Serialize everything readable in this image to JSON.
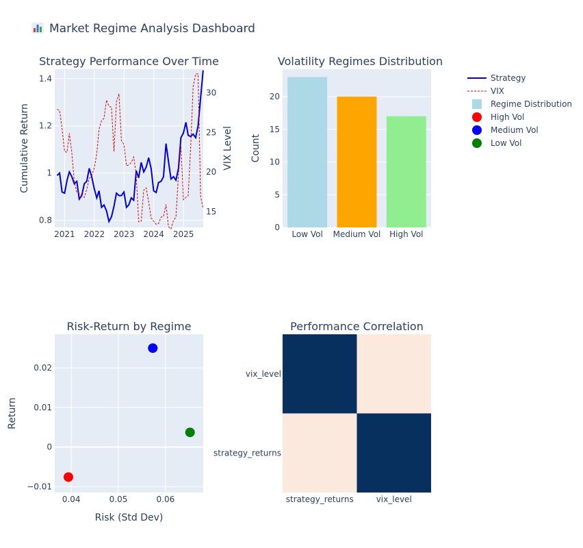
{
  "title": "Market Regime Analysis Dashboard",
  "title_icon": "bar-chart-icon",
  "colors": {
    "plot_bg": "#e5ecf6",
    "grid": "#ffffff",
    "text": "#2a3f5f",
    "strategy": "#0000dd",
    "vix": "#dd0000",
    "low_vol": "#add8e6",
    "medium_vol": "#ffa500",
    "high_vol": "#90ee90",
    "scatter_high": "#ff0000",
    "scatter_medium": "#0000ff",
    "scatter_low": "#008000",
    "heat_low": "#fbe9de",
    "heat_high": "#08305e"
  },
  "legend": {
    "items": [
      {
        "label": "Strategy",
        "kind": "line",
        "color": "#0000dd"
      },
      {
        "label": "VIX",
        "kind": "dash",
        "color": "#dd0000"
      },
      {
        "label": "Regime Distribution",
        "kind": "square",
        "color": "#add8e6"
      },
      {
        "label": "High Vol",
        "kind": "circle",
        "color": "#ff0000"
      },
      {
        "label": "Medium Vol",
        "kind": "circle",
        "color": "#0000ff"
      },
      {
        "label": "Low Vol",
        "kind": "circle",
        "color": "#008000"
      }
    ]
  },
  "chart_data": [
    {
      "type": "line",
      "title": "Strategy Performance Over Time",
      "xlabel": "",
      "ylabel": "Cumulative Return",
      "y2label": "VIX Level",
      "xlim": [
        "2020-09-01",
        "2025-09-01"
      ],
      "xticks": [
        "2021",
        "2022",
        "2023",
        "2024",
        "2025"
      ],
      "ylim": [
        0.77,
        1.44
      ],
      "yticks": [
        0.8,
        1,
        1.2,
        1.4
      ],
      "ytick_labels": [
        "0.8",
        "1",
        "1.2",
        "1.4"
      ],
      "y2lim": [
        13,
        33
      ],
      "y2ticks": [
        15,
        20,
        25,
        30
      ],
      "grid": true,
      "series": [
        {
          "name": "Strategy",
          "x": [
            "2020-09-30",
            "2020-10-31",
            "2020-11-30",
            "2020-12-31",
            "2021-01-31",
            "2021-02-28",
            "2021-03-31",
            "2021-04-30",
            "2021-05-31",
            "2021-06-30",
            "2021-07-31",
            "2021-08-31",
            "2021-09-30",
            "2021-10-31",
            "2021-11-30",
            "2021-12-31",
            "2022-01-31",
            "2022-02-28",
            "2022-03-31",
            "2022-04-30",
            "2022-05-31",
            "2022-06-30",
            "2022-07-31",
            "2022-08-31",
            "2022-09-30",
            "2022-10-31",
            "2022-11-30",
            "2022-12-31",
            "2023-01-31",
            "2023-02-28",
            "2023-03-31",
            "2023-04-30",
            "2023-05-31",
            "2023-06-30",
            "2023-07-31",
            "2023-08-31",
            "2023-09-30",
            "2023-10-31",
            "2023-11-30",
            "2023-12-31",
            "2024-01-31",
            "2024-02-29",
            "2024-03-31",
            "2024-04-30",
            "2024-05-31",
            "2024-06-30",
            "2024-07-31",
            "2024-08-31",
            "2024-09-30",
            "2024-10-31",
            "2024-11-30",
            "2024-12-31",
            "2025-01-31",
            "2025-02-28",
            "2025-03-31",
            "2025-04-30",
            "2025-05-31",
            "2025-06-30",
            "2025-07-31",
            "2025-08-31"
          ],
          "values": [
            0.99,
            1.0,
            0.92,
            0.915,
            0.97,
            1.005,
            0.985,
            0.955,
            0.965,
            0.89,
            0.905,
            0.955,
            0.965,
            1.02,
            0.985,
            0.935,
            0.895,
            0.925,
            0.855,
            0.865,
            0.84,
            0.795,
            0.815,
            0.86,
            0.915,
            0.905,
            0.905,
            0.92,
            0.855,
            0.865,
            0.895,
            0.885,
            1.01,
            0.98,
            1.045,
            1.005,
            1.025,
            1.065,
            1.02,
            0.925,
            0.918,
            0.96,
            0.965,
            0.985,
            1.125,
            1.05,
            0.975,
            0.985,
            0.97,
            1.02,
            1.15,
            1.17,
            1.215,
            1.16,
            1.155,
            1.165,
            1.15,
            1.2,
            1.32,
            1.435
          ]
        },
        {
          "name": "VIX",
          "axis": "y2",
          "x": [
            "2020-09-30",
            "2020-10-31",
            "2020-11-30",
            "2020-12-31",
            "2021-01-31",
            "2021-02-28",
            "2021-03-31",
            "2021-04-30",
            "2021-05-31",
            "2021-06-30",
            "2021-07-31",
            "2021-08-31",
            "2021-09-30",
            "2021-10-31",
            "2021-11-30",
            "2021-12-31",
            "2022-01-31",
            "2022-02-28",
            "2022-03-31",
            "2022-04-30",
            "2022-05-31",
            "2022-06-30",
            "2022-07-31",
            "2022-08-31",
            "2022-09-30",
            "2022-10-31",
            "2022-11-30",
            "2022-12-31",
            "2023-01-31",
            "2023-02-28",
            "2023-03-31",
            "2023-04-30",
            "2023-05-31",
            "2023-06-30",
            "2023-07-31",
            "2023-08-31",
            "2023-09-30",
            "2023-10-31",
            "2023-11-30",
            "2023-12-31",
            "2024-01-31",
            "2024-02-29",
            "2024-03-31",
            "2024-04-30",
            "2024-05-31",
            "2024-06-30",
            "2024-07-31",
            "2024-08-31",
            "2024-09-30",
            "2024-10-31",
            "2024-11-30",
            "2024-12-31",
            "2025-01-31",
            "2025-02-28",
            "2025-03-31",
            "2025-04-30",
            "2025-05-31",
            "2025-06-30",
            "2025-07-31",
            "2025-08-31"
          ],
          "values": [
            27.9,
            27.8,
            25.5,
            22.6,
            22.5,
            24.9,
            22.4,
            18.8,
            17.4,
            17.3,
            17.0,
            16.8,
            17.8,
            19.2,
            19.5,
            20.5,
            22.3,
            25.4,
            26.5,
            26.8,
            29.1,
            28.3,
            28.2,
            22.6,
            28.9,
            29.9,
            24.0,
            23.5,
            20.8,
            20.9,
            21.2,
            21.9,
            19.7,
            13.7,
            13.8,
            17.7,
            18.0,
            16.2,
            14.2,
            13.8,
            13.4,
            13.5,
            14.3,
            14.4,
            15.9,
            13.1,
            12.8,
            13.9,
            14.3,
            19.7,
            23.3,
            16.5,
            16.8,
            17.0,
            23.2,
            30.8,
            32.4,
            32.4,
            16.9,
            15.4
          ]
        }
      ]
    },
    {
      "type": "bar",
      "title": "Volatility Regimes Distribution",
      "xlabel": "",
      "ylabel": "Count",
      "ylim": [
        0,
        24.2
      ],
      "yticks": [
        0,
        5,
        10,
        15,
        20
      ],
      "grid": true,
      "categories": [
        "Low Vol",
        "Medium Vol",
        "High Vol"
      ],
      "values": [
        23,
        20,
        17
      ],
      "series_name": "Regime Distribution"
    },
    {
      "type": "scatter",
      "title": "Risk-Return by Regime",
      "xlabel": "Risk (Std Dev)",
      "ylabel": "Return",
      "xlim": [
        0.0365,
        0.068
      ],
      "ylim": [
        -0.0115,
        0.0285
      ],
      "xticks": [
        0.04,
        0.05,
        0.06
      ],
      "xtick_labels": [
        "0.04",
        "0.05",
        "0.06"
      ],
      "yticks": [
        -0.01,
        0,
        0.01,
        0.02
      ],
      "ytick_labels": [
        "−0.01",
        "0",
        "0.01",
        "0.02"
      ],
      "grid": true,
      "series": [
        {
          "name": "High Vol",
          "x": [
            0.0394
          ],
          "y": [
            -0.0076
          ]
        },
        {
          "name": "Medium Vol",
          "x": [
            0.0573
          ],
          "y": [
            0.025
          ]
        },
        {
          "name": "Low Vol",
          "x": [
            0.0652
          ],
          "y": [
            0.0037
          ]
        }
      ]
    },
    {
      "type": "heatmap",
      "title": "Performance Correlation",
      "x": [
        "strategy_returns",
        "vix_level"
      ],
      "y": [
        "strategy_returns",
        "vix_level"
      ],
      "z": [
        [
          1.0,
          -0.85
        ],
        [
          -0.85,
          1.0
        ]
      ],
      "zlim": [
        -0.85,
        1.0
      ]
    }
  ]
}
